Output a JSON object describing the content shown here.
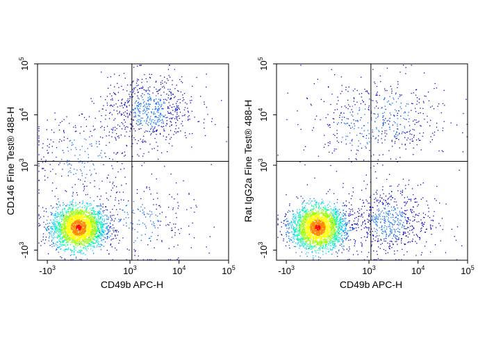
{
  "chart_data": [
    {
      "type": "scatter",
      "subtype": "flow-cytometry-density-dot-plot",
      "title": "",
      "xlabel": "CD49b APC-H",
      "ylabel": "CD146 Fine Test® 488-H",
      "x_scale": "biexponential",
      "y_scale": "biexponential",
      "x_ticks": [
        {
          "base": "-10",
          "exp": "3",
          "value": -1000
        },
        {
          "base": "10",
          "exp": "3",
          "value": 1000
        },
        {
          "base": "10",
          "exp": "4",
          "value": 10000
        },
        {
          "base": "10",
          "exp": "5",
          "value": 100000
        }
      ],
      "y_ticks": [
        {
          "base": "-10",
          "exp": "3",
          "value": -1000
        },
        {
          "base": "10",
          "exp": "3",
          "value": 1000
        },
        {
          "base": "10",
          "exp": "4",
          "value": 10000
        },
        {
          "base": "10",
          "exp": "5",
          "value": 100000
        }
      ],
      "quadrant_gate": {
        "x": 1100,
        "y": 1200
      },
      "populations": [
        {
          "x": -150,
          "y": -300,
          "density": "very high"
        },
        {
          "x": 2500,
          "y": 12000,
          "density": "medium"
        },
        {
          "x": 1500,
          "y": -200,
          "density": "low"
        },
        {
          "x": -100,
          "y": 1500,
          "density": "low"
        }
      ],
      "colormap": [
        "#0000cc",
        "#0066ff",
        "#00ccff",
        "#00ff99",
        "#99ff00",
        "#ffff00",
        "#ff8800",
        "#ff0000"
      ]
    },
    {
      "type": "scatter",
      "subtype": "flow-cytometry-density-dot-plot",
      "title": "",
      "xlabel": "CD49b APC-H",
      "ylabel": "Rat IgG2a Fine Test® 488-H",
      "x_scale": "biexponential",
      "y_scale": "biexponential",
      "x_ticks": [
        {
          "base": "-10",
          "exp": "3",
          "value": -1000
        },
        {
          "base": "10",
          "exp": "3",
          "value": 1000
        },
        {
          "base": "10",
          "exp": "4",
          "value": 10000
        },
        {
          "base": "10",
          "exp": "5",
          "value": 100000
        }
      ],
      "y_ticks": [
        {
          "base": "-10",
          "exp": "3",
          "value": -1000
        },
        {
          "base": "10",
          "exp": "3",
          "value": 1000
        },
        {
          "base": "10",
          "exp": "4",
          "value": 10000
        },
        {
          "base": "10",
          "exp": "5",
          "value": 100000
        }
      ],
      "quadrant_gate": {
        "x": 1100,
        "y": 1200
      },
      "populations": [
        {
          "x": -150,
          "y": -300,
          "density": "very high"
        },
        {
          "x": 2500,
          "y": -200,
          "density": "medium"
        },
        {
          "x": 600,
          "y": 6000,
          "density": "low"
        },
        {
          "x": 3000,
          "y": 10000,
          "density": "low"
        }
      ],
      "colormap": [
        "#0000cc",
        "#0066ff",
        "#00ccff",
        "#00ff99",
        "#99ff00",
        "#ffff00",
        "#ff8800",
        "#ff0000"
      ]
    }
  ]
}
